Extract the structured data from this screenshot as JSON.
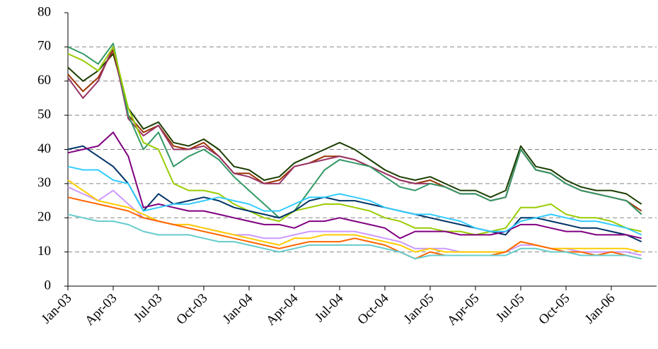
{
  "chart_data": {
    "type": "line",
    "categories": [
      "Jan-03",
      null,
      null,
      "Apr-03",
      null,
      null,
      "Jul-03",
      null,
      null,
      "Oct-03",
      null,
      null,
      "Jan-04",
      null,
      null,
      "Apr-04",
      null,
      null,
      "Jul-04",
      null,
      null,
      "Oct-04",
      null,
      null,
      "Jan-05",
      null,
      null,
      "Apr-05",
      null,
      null,
      "Jul-05",
      null,
      null,
      "Oct-05",
      null,
      null,
      "Jan-06",
      null,
      null
    ],
    "ylim": [
      0,
      80
    ],
    "yticks": [
      0,
      10,
      20,
      30,
      40,
      50,
      60,
      70,
      80
    ],
    "grid": true,
    "series": [
      {
        "color": "#1a3d00",
        "values": [
          64,
          60,
          63,
          68,
          52,
          46,
          48,
          42,
          41,
          43,
          40,
          35,
          34,
          31,
          32,
          36,
          38,
          40,
          42,
          40,
          37,
          34,
          32,
          31,
          32,
          30,
          28,
          28,
          26,
          28,
          41,
          35,
          34,
          31,
          29,
          28,
          28,
          27,
          24
        ]
      },
      {
        "color": "#993300",
        "values": [
          62,
          57,
          61,
          69,
          50,
          45,
          47,
          41,
          40,
          42,
          38,
          33,
          33,
          30,
          31,
          35,
          36,
          38,
          38,
          37,
          35,
          33,
          31,
          30,
          31,
          29,
          27,
          27,
          25,
          26,
          40,
          34,
          33,
          30,
          28,
          27,
          26,
          25,
          22
        ]
      },
      {
        "color": "#993366",
        "values": [
          61,
          55,
          60,
          70,
          49,
          44,
          47,
          40,
          40,
          41,
          38,
          33,
          32,
          30,
          30,
          35,
          36,
          37,
          38,
          37,
          35,
          33,
          31,
          30,
          30,
          29,
          27,
          27,
          25,
          26,
          40,
          34,
          33,
          30,
          28,
          27,
          26,
          25,
          21
        ]
      },
      {
        "color": "#339966",
        "values": [
          70,
          68,
          65,
          71,
          50,
          40,
          45,
          35,
          38,
          40,
          37,
          32,
          28,
          24,
          20,
          22,
          28,
          34,
          37,
          36,
          35,
          32,
          29,
          28,
          30,
          29,
          27,
          27,
          25,
          26,
          40,
          34,
          33,
          30,
          28,
          27,
          26,
          25,
          21
        ]
      },
      {
        "color": "#99cc00",
        "values": [
          68,
          66,
          63,
          70,
          52,
          42,
          40,
          30,
          28,
          28,
          27,
          24,
          22,
          20,
          19,
          22,
          23,
          24,
          24,
          23,
          22,
          20,
          19,
          17,
          17,
          16,
          16,
          15,
          16,
          17,
          23,
          23,
          24,
          21,
          20,
          20,
          19,
          17,
          16
        ]
      },
      {
        "color": "#003366",
        "values": [
          40,
          41,
          38,
          35,
          30,
          22,
          27,
          24,
          25,
          26,
          25,
          23,
          22,
          21,
          20,
          22,
          25,
          26,
          25,
          25,
          24,
          23,
          22,
          21,
          20,
          19,
          18,
          17,
          16,
          15,
          20,
          20,
          19,
          18,
          17,
          17,
          16,
          15,
          13
        ]
      },
      {
        "color": "#800080",
        "values": [
          39,
          40,
          41,
          45,
          38,
          23,
          24,
          23,
          22,
          22,
          21,
          20,
          19,
          18,
          18,
          17,
          19,
          19,
          20,
          19,
          18,
          17,
          14,
          16,
          16,
          16,
          15,
          15,
          15,
          16,
          18,
          18,
          17,
          16,
          16,
          15,
          15,
          15,
          14
        ]
      },
      {
        "color": "#33ccff",
        "values": [
          35,
          34,
          34,
          31,
          30,
          22,
          23,
          24,
          24,
          25,
          26,
          25,
          24,
          22,
          22,
          24,
          26,
          26,
          27,
          26,
          25,
          23,
          22,
          21,
          21,
          20,
          19,
          17,
          16,
          16,
          19,
          20,
          21,
          20,
          19,
          19,
          18,
          17,
          15
        ]
      },
      {
        "color": "#cc99ff",
        "values": [
          29,
          27,
          25,
          28,
          24,
          20,
          19,
          18,
          18,
          17,
          16,
          15,
          15,
          14,
          14,
          15,
          16,
          16,
          16,
          16,
          15,
          14,
          13,
          11,
          11,
          11,
          10,
          10,
          10,
          10,
          12,
          12,
          11,
          11,
          10,
          10,
          10,
          10,
          9
        ]
      },
      {
        "color": "#ffcc00",
        "values": [
          31,
          28,
          25,
          24,
          23,
          21,
          19,
          18,
          18,
          17,
          16,
          15,
          14,
          13,
          12,
          14,
          14,
          15,
          15,
          15,
          14,
          13,
          12,
          10,
          11,
          10,
          10,
          10,
          10,
          10,
          13,
          12,
          11,
          11,
          11,
          11,
          11,
          11,
          10
        ]
      },
      {
        "color": "#ff6600",
        "values": [
          26,
          25,
          24,
          23,
          22,
          20,
          19,
          18,
          17,
          16,
          15,
          14,
          13,
          12,
          11,
          12,
          13,
          13,
          13,
          14,
          13,
          12,
          10,
          8,
          10,
          9,
          9,
          9,
          9,
          10,
          13,
          12,
          11,
          10,
          10,
          9,
          10,
          9,
          8
        ]
      },
      {
        "color": "#66cccc",
        "values": [
          21,
          20,
          19,
          19,
          18,
          16,
          15,
          15,
          15,
          14,
          13,
          13,
          12,
          11,
          10,
          11,
          12,
          12,
          12,
          12,
          12,
          11,
          10,
          8,
          9,
          9,
          9,
          9,
          9,
          9,
          11,
          11,
          10,
          10,
          9,
          9,
          9,
          9,
          8
        ]
      }
    ]
  }
}
